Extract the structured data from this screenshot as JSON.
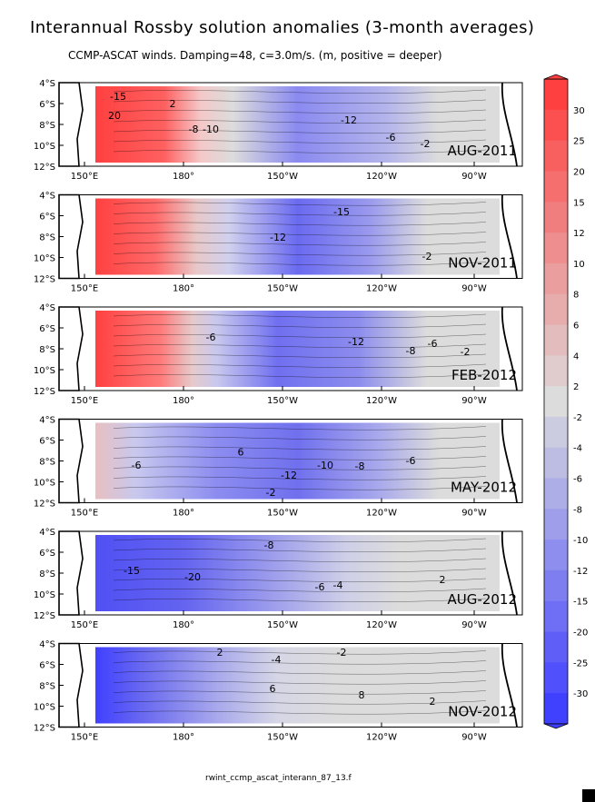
{
  "title": "Interannual Rossby solution anomalies (3-month averages)",
  "subtitle": "CCMP-ASCAT winds. Damping=48, c=3.0m/s. (m, positive = deeper)",
  "footer": "rwint_ccmp_ascat_interann_87_13.f",
  "chart_data": {
    "type": "heatmap",
    "variable": "Rossby solution anomaly (m, positive = deeper)",
    "x_ticks": [
      "150°E",
      "180°",
      "150°W",
      "120°W",
      "90°W"
    ],
    "y_ticks": [
      "4°S",
      "6°S",
      "8°S",
      "10°S",
      "12°S"
    ],
    "colorbar": {
      "levels": [
        "30",
        "25",
        "20",
        "15",
        "12",
        "10",
        "8",
        "6",
        "4",
        "2",
        "-2",
        "-4",
        "-6",
        "-8",
        "-10",
        "-12",
        "-15",
        "-20",
        "-25",
        "-30"
      ],
      "positive_color": "#ff4040",
      "negative_color": "#4040ff",
      "neutral_color": "#dcdcdc"
    },
    "panels": [
      {
        "label": "AUG-2011",
        "contour_labels": [
          {
            "text": "2"
          },
          {
            "text": "-15"
          },
          {
            "text": "20"
          },
          {
            "text": "-12"
          },
          {
            "text": "-8"
          },
          {
            "text": "-10"
          },
          {
            "text": "-6"
          },
          {
            "text": "-2"
          }
        ],
        "features": "positive west of 170°E; negative max near 150°W, 6°S"
      },
      {
        "label": "NOV-2011",
        "contour_labels": [
          {
            "text": "-15"
          },
          {
            "text": "-12"
          },
          {
            "text": "-2"
          }
        ],
        "features": "positive west; strong gradient band near 10°S; negative max near 140°W"
      },
      {
        "label": "FEB-2012",
        "contour_labels": [
          {
            "text": "-6"
          },
          {
            "text": "-12"
          },
          {
            "text": "-8"
          },
          {
            "text": "-6"
          },
          {
            "text": "-2"
          }
        ],
        "features": "positive west of 175°E; broad negative centered near 140°W"
      },
      {
        "label": "MAY-2012",
        "contour_labels": [
          {
            "text": "-6"
          },
          {
            "text": "-12"
          },
          {
            "text": "-10"
          },
          {
            "text": "-8"
          },
          {
            "text": "-6"
          },
          {
            "text": "-2"
          },
          {
            "text": "6"
          }
        ],
        "features": "negatives dominate; positive confined to southwest corner"
      },
      {
        "label": "AUG-2012",
        "contour_labels": [
          {
            "text": "-8"
          },
          {
            "text": "-15"
          },
          {
            "text": "-20"
          },
          {
            "text": "-6"
          },
          {
            "text": "-4"
          },
          {
            "text": "2"
          }
        ],
        "features": "strong negative near 175°E; weak positive near 110°W, 9°S"
      },
      {
        "label": "NOV-2012",
        "contour_labels": [
          {
            "text": "2"
          },
          {
            "text": "-4"
          },
          {
            "text": "-2"
          },
          {
            "text": "6"
          },
          {
            "text": "8"
          },
          {
            "text": "2"
          }
        ],
        "features": "negative west; positive band 140°W-110°W near 8°S"
      }
    ]
  }
}
